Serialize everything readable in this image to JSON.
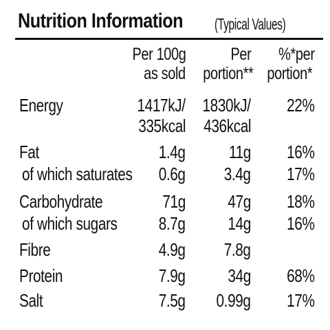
{
  "title": "Nutrition Information",
  "subtitle": "(Typical Values)",
  "header": {
    "col1_line1": "Per 100g",
    "col1_line2": "as sold",
    "col2_line1": "Per",
    "col2_line2": "portion**",
    "col3_line1": "%*per",
    "col3_line2": "portion*"
  },
  "rows": [
    {
      "label": "Energy",
      "per100": "1417kJ/",
      "portion": "1830kJ/",
      "pct": "22%"
    },
    {
      "label": "",
      "per100": "335kcal",
      "portion": "436kcal",
      "pct": ""
    },
    {
      "label": "Fat",
      "per100": "1.4g",
      "portion": "11g",
      "pct": "16%"
    },
    {
      "label": " of which saturates",
      "per100": "0.6g",
      "portion": "3.4g",
      "pct": "17%"
    },
    {
      "label": "Carbohydrate",
      "per100": "71g",
      "portion": "47g",
      "pct": "18%"
    },
    {
      "label": " of which sugars",
      "per100": "8.7g",
      "portion": "14g",
      "pct": "16%"
    },
    {
      "label": "Fibre",
      "per100": "4.9g",
      "portion": "7.8g",
      "pct": ""
    },
    {
      "label": "Protein",
      "per100": "7.9g",
      "portion": "34g",
      "pct": "68%"
    },
    {
      "label": "Salt",
      "per100": "7.5g",
      "portion": "0.99g",
      "pct": "17%"
    }
  ]
}
